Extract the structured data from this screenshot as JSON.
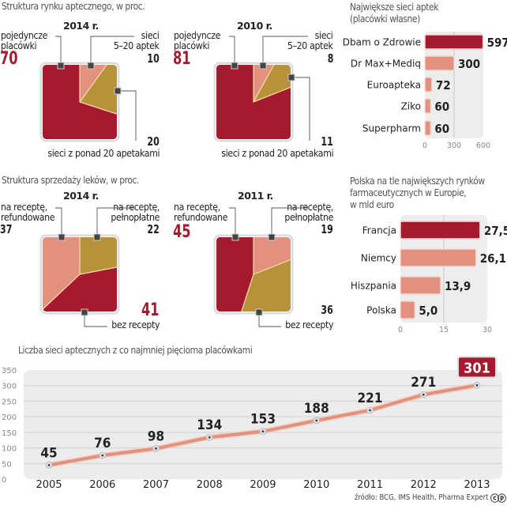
{
  "colors": {
    "red": "#a51a2e",
    "salmon": "#e2917e",
    "gold": "#b8923a",
    "panel": "#ececec"
  },
  "market_structure": {
    "title": "Struktura rynku aptecznego, w proc.",
    "charts": [
      {
        "year": "2014 r.",
        "single_label": [
          "pojedyncze",
          "placówki"
        ],
        "single": 70,
        "small_label": [
          "sieci",
          "5–20 aptek"
        ],
        "small": 10,
        "large_label": "sieci z ponad 20 apetakami",
        "large": 20
      },
      {
        "year": "2010 r.",
        "single_label": [
          "pojedyncze",
          "placówki"
        ],
        "single": 81,
        "small_label": [
          "sieci",
          "5–20 aptek"
        ],
        "small": 8,
        "large_label": "sieci z ponad 20 apetakami",
        "large": 11
      }
    ]
  },
  "sales_structure": {
    "title": "Struktura sprzedaży leków, w proc.",
    "charts": [
      {
        "year": "2014 r.",
        "refund_label": [
          "na receptę,",
          "refundowane"
        ],
        "refund": 37,
        "full_label": [
          "na receptę,",
          "pełnopłatne"
        ],
        "full": 22,
        "otc_label": "bez recepty",
        "otc": 41
      },
      {
        "year": "2011 r.",
        "refund_label": [
          "na receptę,",
          "refundowane"
        ],
        "refund": 45,
        "full_label": [
          "na receptę,",
          "pełnopłatne"
        ],
        "full": 19,
        "otc_label": "bez recepty",
        "otc": 36
      }
    ]
  },
  "chart_data": [
    {
      "type": "pie",
      "title": "Struktura rynku aptecznego, w proc. — 2014 r.",
      "categories": [
        "pojedyncze placówki",
        "sieci 5–20 aptek",
        "sieci z ponad 20 apetakami"
      ],
      "values": [
        70,
        10,
        20
      ]
    },
    {
      "type": "pie",
      "title": "Struktura rynku aptecznego, w proc. — 2010 r.",
      "categories": [
        "pojedyncze placówki",
        "sieci 5–20 aptek",
        "sieci z ponad 20 apetakami"
      ],
      "values": [
        81,
        8,
        11
      ]
    },
    {
      "type": "pie",
      "title": "Struktura sprzedaży leków, w proc. — 2014 r.",
      "categories": [
        "na receptę, refundowane",
        "na receptę, pełnopłatne",
        "bez recepty"
      ],
      "values": [
        37,
        22,
        41
      ]
    },
    {
      "type": "pie",
      "title": "Struktura sprzedaży leków, w proc. — 2011 r.",
      "categories": [
        "na receptę, refundowane",
        "na receptę, pełnopłatne",
        "bez recepty"
      ],
      "values": [
        45,
        19,
        36
      ]
    },
    {
      "type": "bar",
      "orientation": "horizontal",
      "title": "Największe sieci aptek (placówki własne)",
      "categories": [
        "Dbam o Zdrowie",
        "Dr Max+Mediq",
        "Euroapteka",
        "Ziko",
        "Superpharm"
      ],
      "values": [
        597,
        300,
        72,
        60,
        60
      ],
      "value_labels": [
        "597",
        "300",
        "72",
        "60",
        "60"
      ],
      "xlim": [
        0,
        600
      ],
      "xticks": [
        "0",
        "300",
        "600"
      ],
      "highlight": "Dbam o Zdrowie"
    },
    {
      "type": "bar",
      "orientation": "horizontal",
      "title": "Polska na tle największych rynków farmaceutycznych w Europie, w mld euro",
      "title_lines": [
        "Polska na tle największych rynków",
        "farmaceutycznych w Europie,",
        "w mld euro"
      ],
      "categories": [
        "Francja",
        "Niemcy",
        "Hiszpania",
        "Polska"
      ],
      "values": [
        27.5,
        26.1,
        13.9,
        5.0
      ],
      "value_labels": [
        "27,5",
        "26,1",
        "13,9",
        "5,0"
      ],
      "xlim": [
        0,
        30
      ],
      "xticks": [
        "0",
        "15",
        "30"
      ],
      "highlight": "Francja"
    },
    {
      "type": "line",
      "title": "Liczba sieci aptecznych z co najmniej pięcioma placówkami",
      "x": [
        "2005",
        "2006",
        "2007",
        "2008",
        "2009",
        "2010",
        "2011",
        "2012",
        "2013"
      ],
      "values": [
        45,
        76,
        98,
        134,
        153,
        188,
        221,
        271,
        301
      ],
      "ylim": [
        0,
        350
      ],
      "yticks": [
        "0",
        "50",
        "100",
        "150",
        "200",
        "250",
        "300",
        "350"
      ],
      "grid": true,
      "highlight": "2013"
    }
  ],
  "top_chains": {
    "title_lines": [
      "Największe sieci aptek",
      "(placówki własne)"
    ]
  },
  "source": "źródło: BCG, IMS Health, Pharma Expert",
  "license_icon": "cc-icon"
}
